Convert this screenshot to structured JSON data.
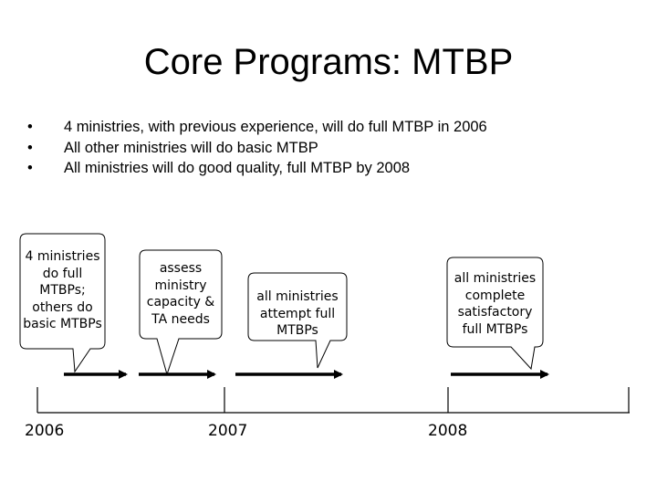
{
  "slide": {
    "title": "Core Programs: MTBP",
    "bullets": [
      "4 ministries, with previous experience, will do full MTBP in 2006",
      "All other ministries will do basic MTBP",
      "All ministries will do good quality, full MTBP by 2008"
    ],
    "bullet_glyph": "•"
  },
  "timeline": {
    "years": [
      "2006",
      "2007",
      "2008"
    ],
    "callouts": [
      {
        "lines": [
          "4 ministries",
          "do full",
          "MTBPs;",
          "others do",
          "basic MTBPs"
        ]
      },
      {
        "lines": [
          "assess",
          "ministry",
          "capacity &",
          "TA needs"
        ]
      },
      {
        "lines": [
          "all ministries",
          "attempt full",
          "MTBPs"
        ]
      },
      {
        "lines": [
          "all ministries",
          "complete",
          "satisfactory",
          "full MTBPs"
        ]
      }
    ]
  }
}
